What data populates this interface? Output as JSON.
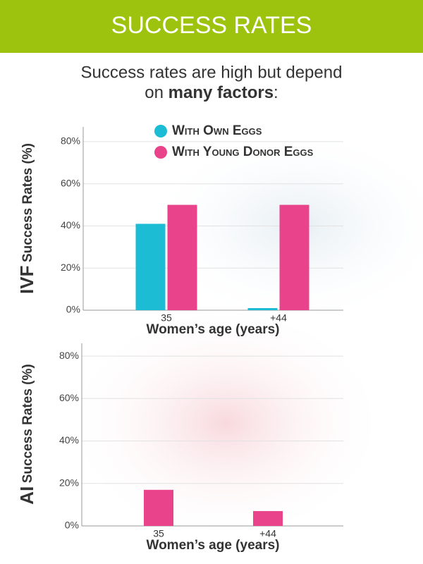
{
  "header": {
    "title": "SUCCESS RATES",
    "subtitle_line1": "Success rates are high but depend",
    "subtitle_on": "on",
    "subtitle_bold": "many factors",
    "subtitle_end": ":"
  },
  "chart_data": [
    {
      "type": "bar",
      "ylabel": [
        "IVF",
        "Success Rates (%)"
      ],
      "xlabel": "Women’s age (years)",
      "categories": [
        "35",
        "+44"
      ],
      "series": [
        {
          "name": "With Own Eggs",
          "color": "#1bbcd4",
          "values": [
            41,
            1
          ]
        },
        {
          "name": "With Young Donor Eggs",
          "color": "#e8438b",
          "values": [
            50,
            50
          ]
        }
      ],
      "ylim": [
        0,
        87
      ],
      "yticks": [
        {
          "value": 0,
          "label": "0%"
        },
        {
          "value": 20,
          "label": "20%"
        },
        {
          "value": 40,
          "label": "40%"
        },
        {
          "value": 60,
          "label": "60%"
        },
        {
          "value": 80,
          "label": "80%"
        }
      ],
      "grid": true
    },
    {
      "type": "bar",
      "ylabel": [
        "AI",
        "Success Rates (%)"
      ],
      "xlabel": "Women’s age (years)",
      "categories": [
        "35",
        "+44"
      ],
      "series": [
        {
          "color": "#e8438b",
          "values": [
            17,
            7
          ]
        }
      ],
      "ylim": [
        0,
        86
      ],
      "yticks": [
        {
          "value": 0,
          "label": "0%"
        },
        {
          "value": 20,
          "label": "20%"
        },
        {
          "value": 40,
          "label": "40%"
        },
        {
          "value": 60,
          "label": "60%"
        },
        {
          "value": 80,
          "label": "80%"
        }
      ],
      "grid": true
    }
  ]
}
